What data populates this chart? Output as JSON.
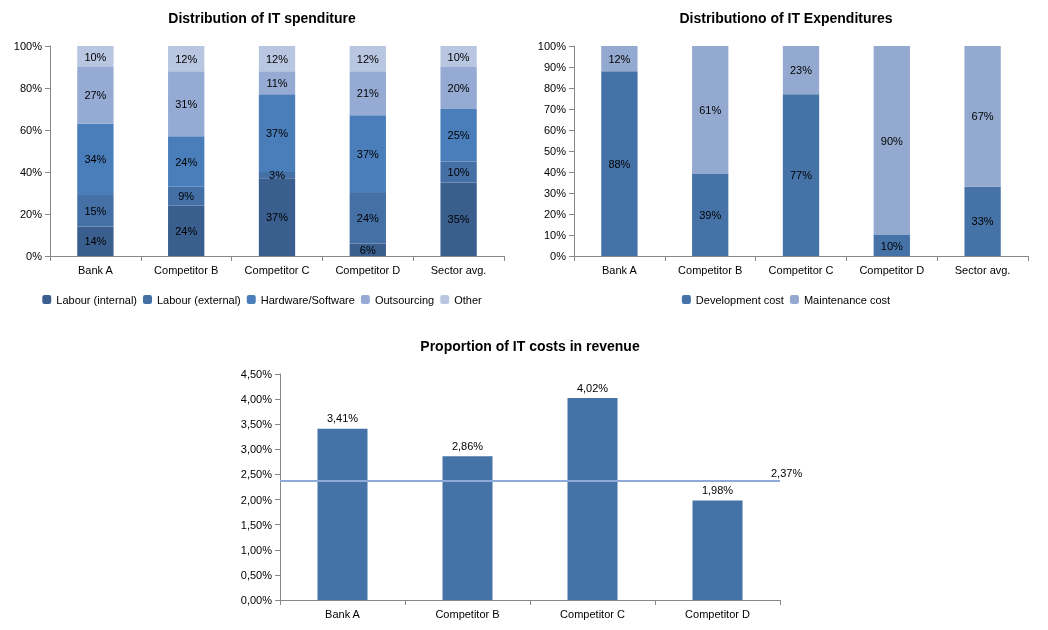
{
  "chart_data": [
    {
      "type": "bar",
      "title": "Distribution of IT spenditure",
      "stacked": true,
      "categories": [
        "Bank A",
        "Competitor B",
        "Competitor C",
        "Competitor D",
        "Sector avg."
      ],
      "series": [
        {
          "name": "Labour (internal)",
          "color": "#3a5f8e",
          "values": [
            14,
            24,
            37,
            6,
            35
          ],
          "value_labels": [
            "14%",
            "24%",
            "37%",
            "6%",
            "35%"
          ]
        },
        {
          "name": "Labour (external)",
          "color": "#4470a6",
          "values": [
            15,
            9,
            3,
            24,
            10
          ],
          "value_labels": [
            "15%",
            "9%",
            "3%",
            "24%",
            "10%"
          ]
        },
        {
          "name": "Hardware/Software",
          "color": "#4a7ebb",
          "values": [
            34,
            24,
            37,
            37,
            25
          ],
          "value_labels": [
            "34%",
            "24%",
            "37%",
            "37%",
            "25%"
          ]
        },
        {
          "name": "Outsourcing",
          "color": "#95abd3",
          "values": [
            27,
            31,
            11,
            21,
            20
          ],
          "value_labels": [
            "27%",
            "31%",
            "11%",
            "21%",
            "20%"
          ]
        },
        {
          "name": "Other",
          "color": "#b9c6e2",
          "values": [
            10,
            12,
            12,
            12,
            10
          ],
          "value_labels": [
            "10%",
            "12%",
            "12%",
            "12%",
            "10%"
          ]
        }
      ],
      "ylim": [
        0,
        100
      ],
      "yticks": [
        {
          "value": 0,
          "label": "0%"
        },
        {
          "value": 20,
          "label": "20%"
        },
        {
          "value": 40,
          "label": "40%"
        },
        {
          "value": 60,
          "label": "60%"
        },
        {
          "value": 80,
          "label": "80%"
        },
        {
          "value": 100,
          "label": "100%"
        }
      ],
      "grid": false,
      "legend": "bottom"
    },
    {
      "type": "bar",
      "title": "Distributiono of IT Expenditures",
      "stacked": true,
      "categories": [
        "Bank A",
        "Competitor B",
        "Competitor C",
        "Competitor D",
        "Sector avg."
      ],
      "series": [
        {
          "name": "Development cost",
          "color": "#4572a7",
          "values": [
            88,
            39,
            77,
            10,
            33
          ],
          "value_labels": [
            "88%",
            "39%",
            "77%",
            "10%",
            "33%"
          ]
        },
        {
          "name": "Maintenance cost",
          "color": "#93a9cf",
          "values": [
            12,
            61,
            23,
            90,
            67
          ],
          "value_labels": [
            "12%",
            "61%",
            "23%",
            "90%",
            "67%"
          ]
        }
      ],
      "ylim": [
        0,
        100
      ],
      "yticks": [
        {
          "value": 0,
          "label": "0%"
        },
        {
          "value": 10,
          "label": "10%"
        },
        {
          "value": 20,
          "label": "20%"
        },
        {
          "value": 30,
          "label": "30%"
        },
        {
          "value": 40,
          "label": "40%"
        },
        {
          "value": 50,
          "label": "50%"
        },
        {
          "value": 60,
          "label": "60%"
        },
        {
          "value": 70,
          "label": "70%"
        },
        {
          "value": 80,
          "label": "80%"
        },
        {
          "value": 90,
          "label": "90%"
        },
        {
          "value": 100,
          "label": "100%"
        }
      ],
      "grid": false,
      "legend": "bottom"
    },
    {
      "type": "bar",
      "title": "Proportion of IT costs in revenue",
      "categories": [
        "Bank A",
        "Competitor B",
        "Competitor C",
        "Competitor D"
      ],
      "color": "#4572a7",
      "values": [
        3.41,
        2.86,
        4.02,
        1.98
      ],
      "value_labels": [
        "3,41%",
        "2,86%",
        "4,02%",
        "1,98%"
      ],
      "ref_lines": [
        {
          "axis": "y",
          "value": 2.37,
          "label": "2,37%",
          "color": "#8eaadb"
        }
      ],
      "ylim": [
        0,
        4.5
      ],
      "yticks": [
        {
          "value": 0,
          "label": "0,00%"
        },
        {
          "value": 0.5,
          "label": "0,50%"
        },
        {
          "value": 1,
          "label": "1,00%"
        },
        {
          "value": 1.5,
          "label": "1,50%"
        },
        {
          "value": 2,
          "label": "2,00%"
        },
        {
          "value": 2.5,
          "label": "2,50%"
        },
        {
          "value": 3,
          "label": "3,00%"
        },
        {
          "value": 3.5,
          "label": "3,50%"
        },
        {
          "value": 4,
          "label": "4,00%"
        },
        {
          "value": 4.5,
          "label": "4,50%"
        }
      ],
      "grid": false
    }
  ]
}
